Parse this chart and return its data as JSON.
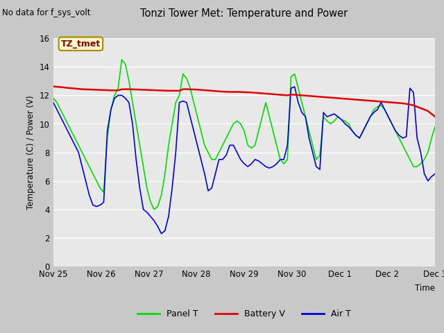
{
  "title": "Tonzi Tower Met: Temperature and Power",
  "top_left_text": "No data for f_sys_volt",
  "ylabel": "Temperature (C) / Power (V)",
  "xlabel": "Time",
  "ylim": [
    0,
    16
  ],
  "yticks": [
    0,
    2,
    4,
    6,
    8,
    10,
    12,
    14,
    16
  ],
  "xtick_labels": [
    "Nov 25",
    "Nov 26",
    "Nov 27",
    "Nov 28",
    "Nov 29",
    "Nov 30",
    "Dec 1",
    "Dec 2",
    "Dec 3"
  ],
  "legend_labels": [
    "Panel T",
    "Battery V",
    "Air T"
  ],
  "legend_colors": [
    "#00dd00",
    "#dd0000",
    "#0000dd"
  ],
  "annotation_box": "TZ_tmet",
  "annotation_box_color": "#ffffcc",
  "annotation_box_edge": "#aa8800",
  "annotation_text_color": "#880000",
  "plot_bg_color": "#e8e8e8",
  "grid_color": "#ffffff",
  "fig_bg_color": "#c8c8c8",
  "panel_T": [
    11.8,
    11.5,
    11.0,
    10.5,
    10.0,
    9.5,
    9.0,
    8.5,
    8.0,
    7.5,
    7.0,
    6.5,
    6.0,
    5.5,
    5.2,
    9.0,
    11.0,
    12.0,
    12.5,
    14.5,
    14.2,
    13.0,
    11.5,
    10.0,
    8.5,
    7.0,
    5.5,
    4.5,
    4.0,
    4.2,
    5.0,
    6.5,
    8.5,
    10.0,
    11.5,
    12.0,
    13.5,
    13.2,
    12.5,
    11.5,
    10.5,
    9.5,
    8.5,
    8.0,
    7.5,
    7.5,
    8.0,
    8.5,
    9.0,
    9.5,
    10.0,
    10.2,
    10.0,
    9.5,
    8.5,
    8.3,
    8.5,
    9.5,
    10.5,
    11.5,
    10.5,
    9.5,
    8.5,
    7.5,
    7.2,
    7.5,
    13.3,
    13.5,
    12.5,
    11.5,
    10.5,
    9.5,
    8.5,
    7.5,
    7.8,
    10.5,
    10.2,
    10.0,
    10.2,
    10.5,
    10.3,
    10.2,
    10.0,
    9.5,
    9.2,
    9.0,
    9.5,
    10.0,
    10.5,
    11.0,
    11.2,
    11.3,
    11.0,
    10.5,
    10.0,
    9.5,
    9.0,
    8.5,
    8.0,
    7.5,
    7.0,
    7.0,
    7.2,
    7.5,
    8.0,
    9.0,
    9.8
  ],
  "battery_V": [
    12.62,
    12.6,
    12.58,
    12.55,
    12.52,
    12.5,
    12.48,
    12.45,
    12.43,
    12.42,
    12.41,
    12.4,
    12.39,
    12.38,
    12.37,
    12.36,
    12.35,
    12.35,
    12.35,
    12.42,
    12.43,
    12.43,
    12.42,
    12.41,
    12.4,
    12.39,
    12.38,
    12.37,
    12.36,
    12.35,
    12.34,
    12.33,
    12.32,
    12.32,
    12.32,
    12.32,
    12.43,
    12.43,
    12.42,
    12.41,
    12.4,
    12.38,
    12.36,
    12.34,
    12.32,
    12.3,
    12.28,
    12.26,
    12.25,
    12.24,
    12.24,
    12.24,
    12.23,
    12.22,
    12.21,
    12.2,
    12.18,
    12.16,
    12.14,
    12.12,
    12.1,
    12.08,
    12.06,
    12.04,
    12.02,
    12.0,
    12.05,
    12.04,
    12.02,
    12.0,
    11.98,
    11.96,
    11.94,
    11.92,
    11.9,
    11.88,
    11.86,
    11.84,
    11.82,
    11.8,
    11.78,
    11.76,
    11.74,
    11.72,
    11.7,
    11.68,
    11.66,
    11.64,
    11.62,
    11.6,
    11.58,
    11.56,
    11.54,
    11.52,
    11.5,
    11.48,
    11.46,
    11.44,
    11.4,
    11.35,
    11.3,
    11.2,
    11.1,
    11.0,
    10.9,
    10.7,
    10.5
  ],
  "air_T": [
    11.5,
    11.0,
    10.5,
    10.0,
    9.5,
    9.0,
    8.5,
    8.0,
    7.0,
    6.0,
    5.0,
    4.3,
    4.2,
    4.3,
    4.5,
    9.5,
    11.0,
    11.8,
    12.0,
    12.0,
    11.8,
    11.5,
    10.0,
    7.5,
    5.5,
    4.0,
    3.8,
    3.5,
    3.2,
    2.8,
    2.3,
    2.5,
    3.5,
    5.5,
    8.0,
    11.5,
    11.6,
    11.5,
    10.5,
    9.5,
    8.5,
    7.5,
    6.5,
    5.3,
    5.5,
    6.5,
    7.5,
    7.5,
    7.8,
    8.5,
    8.5,
    8.0,
    7.5,
    7.2,
    7.0,
    7.2,
    7.5,
    7.4,
    7.2,
    7.0,
    6.9,
    7.0,
    7.2,
    7.5,
    7.5,
    8.5,
    12.5,
    12.6,
    11.5,
    10.8,
    10.5,
    9.0,
    8.0,
    7.0,
    6.8,
    10.8,
    10.5,
    10.6,
    10.7,
    10.5,
    10.3,
    10.0,
    9.8,
    9.5,
    9.2,
    9.0,
    9.5,
    10.0,
    10.5,
    10.8,
    11.0,
    11.5,
    11.0,
    10.5,
    10.0,
    9.5,
    9.2,
    9.0,
    9.1,
    12.5,
    12.2,
    9.0,
    8.0,
    6.5,
    6.0,
    6.3,
    6.5
  ]
}
